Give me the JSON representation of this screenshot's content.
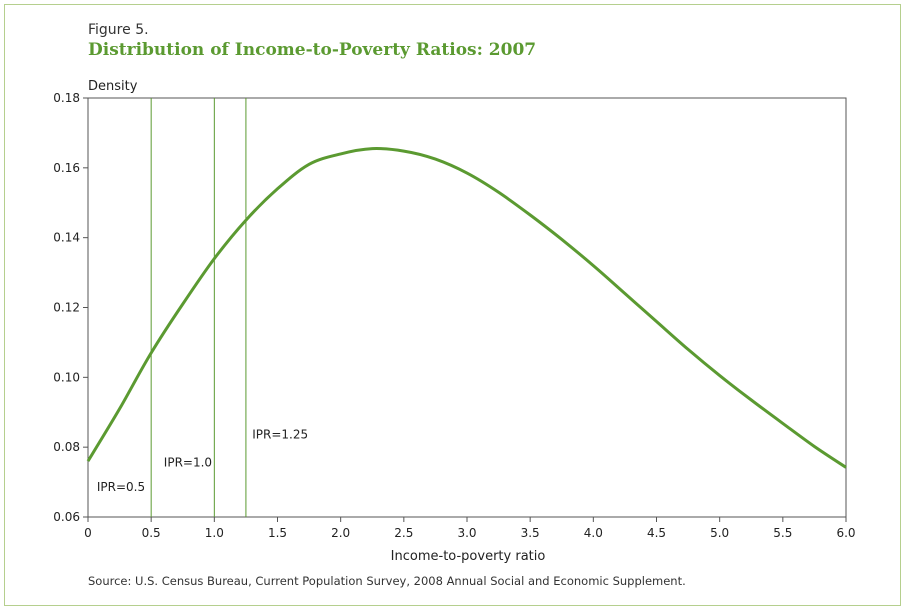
{
  "figure": {
    "label": "Figure 5.",
    "title": "Distribution of Income-to-Poverty Ratios: 2007",
    "source": "Source: U.S. Census Bureau, Current Population Survey, 2008 Annual Social and Economic Supplement."
  },
  "colors": {
    "curve": "#5b9a31",
    "reference_lines": "#5b9a31",
    "frame": "#b5cf8e",
    "axes": "#555555"
  },
  "chart_data": {
    "type": "line",
    "title": "Distribution of Income-to-Poverty Ratios: 2007",
    "xlabel": "Income-to-poverty ratio",
    "ylabel": "Density",
    "xlim": [
      0,
      6.0
    ],
    "ylim": [
      0.06,
      0.18
    ],
    "x_ticks": [
      "0",
      "0.5",
      "1.0",
      "1.5",
      "2.0",
      "2.5",
      "3.0",
      "3.5",
      "4.0",
      "4.5",
      "5.0",
      "5.5",
      "6.0"
    ],
    "y_ticks": [
      "0.06",
      "0.08",
      "0.10",
      "0.12",
      "0.14",
      "0.16",
      "0.18"
    ],
    "grid": false,
    "legend": "none",
    "series": [
      {
        "x": [
          0,
          0.25,
          0.5,
          0.75,
          1.0,
          1.25,
          1.5,
          1.75,
          2.0,
          2.25,
          2.5,
          2.75,
          3.0,
          3.25,
          3.5,
          3.75,
          4.0,
          4.25,
          4.5,
          4.75,
          5.0,
          5.25,
          5.5,
          5.75,
          6.0
        ],
        "values": [
          0.076,
          0.091,
          0.107,
          0.121,
          0.134,
          0.145,
          0.154,
          0.161,
          0.164,
          0.1655,
          0.1648,
          0.1625,
          0.1585,
          0.153,
          0.1465,
          0.1395,
          0.132,
          0.124,
          0.116,
          0.108,
          0.1005,
          0.0935,
          0.0868,
          0.0802,
          0.0742
        ]
      }
    ],
    "reference_lines": [
      {
        "x": 0.5,
        "label": "IPR=0.5",
        "label_y": 0.0675
      },
      {
        "x": 1.0,
        "label": "IPR=1.0",
        "label_y": 0.0745
      },
      {
        "x": 1.25,
        "label": "IPR=1.25",
        "label_y": 0.0825
      }
    ]
  }
}
